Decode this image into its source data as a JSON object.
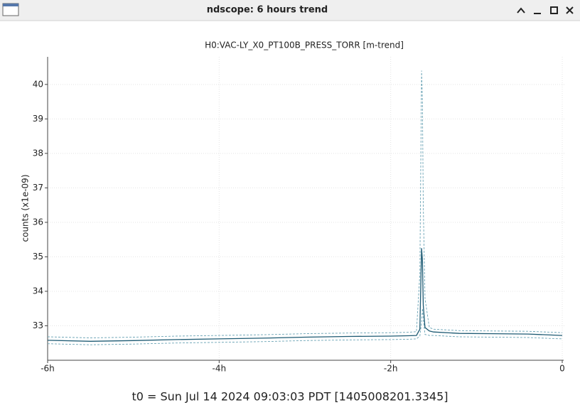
{
  "window": {
    "title": "ndscope: 6 hours trend"
  },
  "chart_data": {
    "type": "line",
    "title": "H0:VAC-LY_X0_PT100B_PRESS_TORR [m-trend]",
    "ylabel": "counts (x1e-09)",
    "footer": "t0 = Sun Jul 14 2024 09:03:03 PDT [1405008201.3345]",
    "x": [
      -6,
      -5.5,
      -5,
      -4.5,
      -4,
      -3.5,
      -3,
      -2.5,
      -2,
      -1.8,
      -1.7,
      -1.66,
      -1.64,
      -1.63,
      -1.62,
      -1.6,
      -1.55,
      -1.5,
      -1.2,
      -0.8,
      -0.4,
      0
    ],
    "series": [
      {
        "color": "#6aa3b5",
        "dashed": true,
        "values": [
          32.68,
          32.65,
          32.67,
          32.7,
          32.72,
          32.74,
          32.77,
          32.79,
          32.8,
          32.81,
          32.83,
          34.5,
          40.4,
          39.5,
          36.5,
          33.8,
          32.95,
          32.9,
          32.86,
          32.85,
          32.84,
          32.8
        ]
      },
      {
        "color": "#6aa3b5",
        "dashed": true,
        "values": [
          32.48,
          32.45,
          32.47,
          32.5,
          32.52,
          32.54,
          32.57,
          32.59,
          32.6,
          32.61,
          32.62,
          32.7,
          33.1,
          33.5,
          33.2,
          32.75,
          32.72,
          32.72,
          32.68,
          32.67,
          32.66,
          32.62
        ]
      },
      {
        "color": "#1d5a73",
        "dashed": false,
        "values": [
          32.58,
          32.55,
          32.57,
          32.6,
          32.62,
          32.64,
          32.67,
          32.69,
          32.7,
          32.71,
          32.72,
          32.9,
          35.25,
          34.9,
          33.6,
          32.95,
          32.85,
          32.82,
          32.78,
          32.77,
          32.76,
          32.72
        ]
      }
    ],
    "xlim": [
      -6,
      0
    ],
    "xticks": [
      {
        "value": -6,
        "label": "-6h"
      },
      {
        "value": -4,
        "label": "-4h"
      },
      {
        "value": -2,
        "label": "-2h"
      },
      0
    ],
    "ylim": [
      32.0,
      40.8
    ],
    "yticks": [
      33,
      34,
      35,
      36,
      37,
      38,
      39,
      40
    ],
    "grid": true
  }
}
